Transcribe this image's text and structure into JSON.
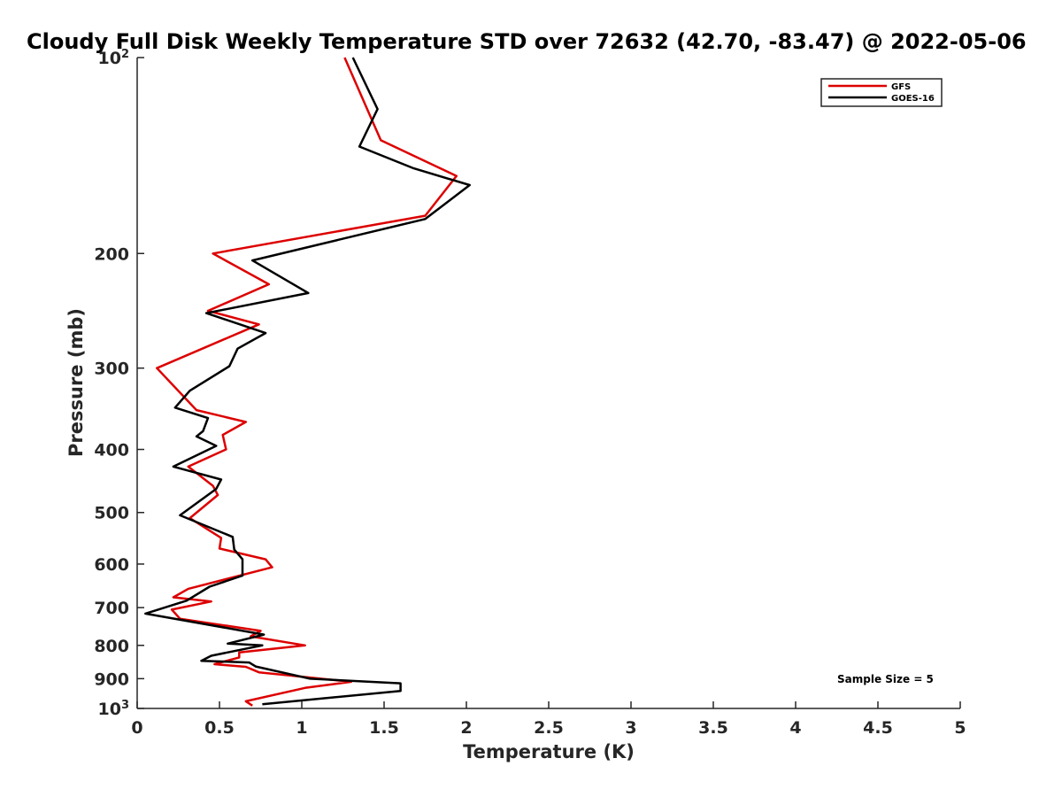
{
  "chart_data": {
    "type": "line",
    "title": "Cloudy Full Disk Weekly Temperature STD over 72632 (42.70, -83.47) @ 2022-05-06",
    "xlabel": "Temperature (K)",
    "ylabel": "Pressure (mb)",
    "xlim": [
      0,
      5
    ],
    "ylim": [
      100,
      1000
    ],
    "y_scale": "log",
    "y_reversed": true,
    "grid": false,
    "legend_position": "top-right",
    "x_ticks": [
      {
        "value": 0,
        "label": "0"
      },
      {
        "value": 0.5,
        "label": "0.5"
      },
      {
        "value": 1,
        "label": "1"
      },
      {
        "value": 1.5,
        "label": "1.5"
      },
      {
        "value": 2,
        "label": "2"
      },
      {
        "value": 2.5,
        "label": "2.5"
      },
      {
        "value": 3,
        "label": "3"
      },
      {
        "value": 3.5,
        "label": "3.5"
      },
      {
        "value": 4,
        "label": "4"
      },
      {
        "value": 4.5,
        "label": "4.5"
      },
      {
        "value": 5,
        "label": "5"
      }
    ],
    "y_ticks": [
      {
        "value": 100,
        "base": "10",
        "exp": "2"
      },
      {
        "value": 200,
        "base": "200",
        "exp": ""
      },
      {
        "value": 300,
        "base": "300",
        "exp": ""
      },
      {
        "value": 400,
        "base": "400",
        "exp": ""
      },
      {
        "value": 500,
        "base": "500",
        "exp": ""
      },
      {
        "value": 600,
        "base": "600",
        "exp": ""
      },
      {
        "value": 700,
        "base": "700",
        "exp": ""
      },
      {
        "value": 800,
        "base": "800",
        "exp": ""
      },
      {
        "value": 900,
        "base": "900",
        "exp": ""
      },
      {
        "value": 1000,
        "base": "10",
        "exp": "3"
      }
    ],
    "annotation": "Sample Size = 5",
    "series": [
      {
        "name": "GFS",
        "color": "#dd0000",
        "points": [
          [
            1.26,
            100
          ],
          [
            1.48,
            134
          ],
          [
            1.94,
            152
          ],
          [
            1.75,
            175
          ],
          [
            0.46,
            200
          ],
          [
            0.8,
            223
          ],
          [
            0.43,
            245
          ],
          [
            0.74,
            257
          ],
          [
            0.12,
            300
          ],
          [
            0.36,
            348
          ],
          [
            0.66,
            363
          ],
          [
            0.52,
            380
          ],
          [
            0.54,
            400
          ],
          [
            0.31,
            425
          ],
          [
            0.46,
            455
          ],
          [
            0.49,
            470
          ],
          [
            0.32,
            510
          ],
          [
            0.51,
            547
          ],
          [
            0.5,
            568
          ],
          [
            0.78,
            590
          ],
          [
            0.82,
            607
          ],
          [
            0.31,
            655
          ],
          [
            0.22,
            675
          ],
          [
            0.45,
            685
          ],
          [
            0.21,
            705
          ],
          [
            0.26,
            728
          ],
          [
            0.75,
            760
          ],
          [
            0.69,
            775
          ],
          [
            1.02,
            800
          ],
          [
            0.62,
            820
          ],
          [
            0.62,
            835
          ],
          [
            0.47,
            855
          ],
          [
            0.66,
            863
          ],
          [
            0.74,
            880
          ],
          [
            1.3,
            910
          ],
          [
            1.02,
            930
          ],
          [
            0.66,
            975
          ],
          [
            0.7,
            990
          ]
        ]
      },
      {
        "name": "GOES-16",
        "color": "#000000",
        "points": [
          [
            1.31,
            100
          ],
          [
            1.46,
            120
          ],
          [
            1.35,
            137
          ],
          [
            1.68,
            148
          ],
          [
            2.02,
            157
          ],
          [
            1.75,
            177
          ],
          [
            0.7,
            205
          ],
          [
            1.04,
            230
          ],
          [
            0.42,
            247
          ],
          [
            0.78,
            265
          ],
          [
            0.61,
            280
          ],
          [
            0.56,
            298
          ],
          [
            0.32,
            325
          ],
          [
            0.23,
            345
          ],
          [
            0.43,
            358
          ],
          [
            0.4,
            375
          ],
          [
            0.36,
            382
          ],
          [
            0.48,
            395
          ],
          [
            0.22,
            425
          ],
          [
            0.51,
            445
          ],
          [
            0.48,
            460
          ],
          [
            0.26,
            505
          ],
          [
            0.58,
            545
          ],
          [
            0.59,
            570
          ],
          [
            0.64,
            590
          ],
          [
            0.64,
            625
          ],
          [
            0.44,
            650
          ],
          [
            0.3,
            683
          ],
          [
            0.05,
            715
          ],
          [
            0.77,
            770
          ],
          [
            0.55,
            795
          ],
          [
            0.76,
            800
          ],
          [
            0.45,
            830
          ],
          [
            0.39,
            845
          ],
          [
            0.68,
            850
          ],
          [
            0.72,
            862
          ],
          [
            1.05,
            900
          ],
          [
            1.6,
            915
          ],
          [
            1.6,
            940
          ],
          [
            0.76,
            985
          ]
        ]
      }
    ]
  }
}
